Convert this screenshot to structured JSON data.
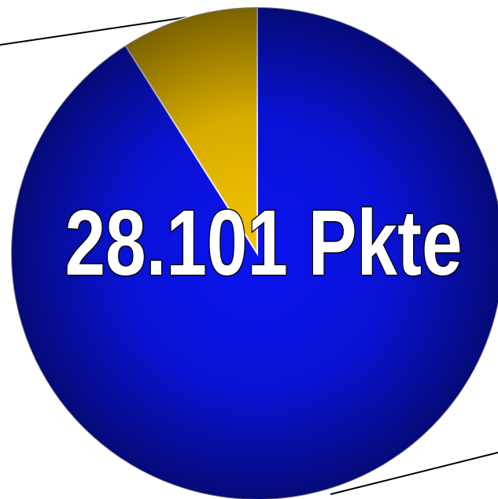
{
  "chart_data": {
    "type": "pie",
    "annotation": "28.101 Pkte",
    "values": [
      91,
      9
    ],
    "colors": [
      "#0a14f0",
      "#f5c400"
    ],
    "start_angle": 0,
    "direction": "clockwise"
  }
}
